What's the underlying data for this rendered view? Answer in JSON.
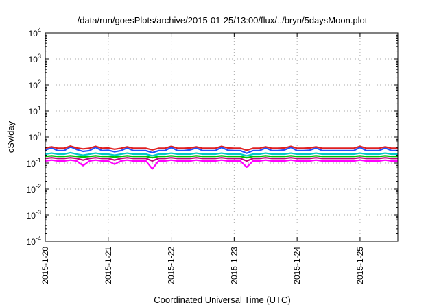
{
  "chart_data": {
    "type": "line",
    "title": "/data/run/goesPlots/archive/2015-01-25/13:00/flux/../bryn/5daysMoon.plot",
    "xlabel": "Coordinated Universal Time (UTC)",
    "ylabel": "cSv/day",
    "yscale": "log",
    "ylim": [
      0.0001,
      10000
    ],
    "xlim": [
      0,
      5.6
    ],
    "grid": true,
    "x_ticks": [
      {
        "value": 0,
        "label": "2015-1-20"
      },
      {
        "value": 1,
        "label": "2015-1-21"
      },
      {
        "value": 2,
        "label": "2015-1-22"
      },
      {
        "value": 3,
        "label": "2015-1-23"
      },
      {
        "value": 4,
        "label": "2015-1-24"
      },
      {
        "value": 5,
        "label": "2015-1-25"
      }
    ],
    "y_ticks": [
      {
        "value": 0.0001,
        "base": "10",
        "exp": "-4"
      },
      {
        "value": 0.001,
        "base": "10",
        "exp": "-3"
      },
      {
        "value": 0.01,
        "base": "10",
        "exp": "-2"
      },
      {
        "value": 0.1,
        "base": "10",
        "exp": "-1"
      },
      {
        "value": 1,
        "base": "10",
        "exp": "0"
      },
      {
        "value": 10,
        "base": "10",
        "exp": "1"
      },
      {
        "value": 100,
        "base": "10",
        "exp": "2"
      },
      {
        "value": 1000,
        "base": "10",
        "exp": "3"
      },
      {
        "value": 10000,
        "base": "10",
        "exp": "4"
      }
    ],
    "series": [
      {
        "color": "#ff00ff",
        "values": [
          0.12,
          0.13,
          0.12,
          0.12,
          0.13,
          0.12,
          0.08,
          0.12,
          0.13,
          0.12,
          0.12,
          0.09,
          0.12,
          0.13,
          0.12,
          0.12,
          0.12,
          0.06,
          0.12,
          0.12,
          0.13,
          0.12,
          0.12,
          0.12,
          0.13,
          0.12,
          0.12,
          0.12,
          0.13,
          0.12,
          0.12,
          0.12,
          0.07,
          0.12,
          0.12,
          0.13,
          0.12,
          0.12,
          0.12,
          0.13,
          0.12,
          0.12,
          0.12,
          0.13,
          0.12,
          0.12,
          0.12,
          0.12,
          0.12,
          0.12,
          0.13,
          0.12,
          0.12,
          0.12,
          0.13,
          0.12,
          0.12
        ]
      },
      {
        "color": "#c00080",
        "values": [
          0.15,
          0.16,
          0.15,
          0.15,
          0.16,
          0.15,
          0.13,
          0.15,
          0.16,
          0.15,
          0.15,
          0.13,
          0.15,
          0.16,
          0.15,
          0.15,
          0.15,
          0.12,
          0.15,
          0.15,
          0.16,
          0.15,
          0.15,
          0.15,
          0.16,
          0.15,
          0.15,
          0.15,
          0.16,
          0.15,
          0.15,
          0.15,
          0.12,
          0.15,
          0.15,
          0.16,
          0.15,
          0.15,
          0.15,
          0.16,
          0.15,
          0.15,
          0.15,
          0.16,
          0.15,
          0.15,
          0.15,
          0.15,
          0.15,
          0.15,
          0.16,
          0.15,
          0.15,
          0.15,
          0.16,
          0.15,
          0.15
        ]
      },
      {
        "color": "#00c000",
        "values": [
          0.18,
          0.19,
          0.18,
          0.18,
          0.19,
          0.18,
          0.17,
          0.18,
          0.19,
          0.18,
          0.18,
          0.17,
          0.18,
          0.19,
          0.18,
          0.18,
          0.18,
          0.16,
          0.18,
          0.18,
          0.19,
          0.18,
          0.18,
          0.18,
          0.19,
          0.18,
          0.18,
          0.18,
          0.19,
          0.18,
          0.18,
          0.18,
          0.16,
          0.18,
          0.18,
          0.19,
          0.18,
          0.18,
          0.18,
          0.19,
          0.18,
          0.18,
          0.18,
          0.19,
          0.18,
          0.18,
          0.18,
          0.18,
          0.18,
          0.18,
          0.19,
          0.18,
          0.18,
          0.18,
          0.19,
          0.18,
          0.18
        ]
      },
      {
        "color": "#00c8c8",
        "values": [
          0.22,
          0.24,
          0.22,
          0.22,
          0.25,
          0.22,
          0.2,
          0.22,
          0.24,
          0.22,
          0.22,
          0.2,
          0.22,
          0.24,
          0.22,
          0.22,
          0.22,
          0.19,
          0.22,
          0.22,
          0.24,
          0.22,
          0.22,
          0.22,
          0.24,
          0.22,
          0.22,
          0.22,
          0.24,
          0.22,
          0.22,
          0.22,
          0.19,
          0.22,
          0.22,
          0.24,
          0.22,
          0.22,
          0.22,
          0.24,
          0.22,
          0.22,
          0.22,
          0.24,
          0.22,
          0.22,
          0.22,
          0.22,
          0.22,
          0.22,
          0.24,
          0.22,
          0.22,
          0.22,
          0.24,
          0.22,
          0.22
        ]
      },
      {
        "color": "#2050ff",
        "values": [
          0.32,
          0.38,
          0.3,
          0.3,
          0.42,
          0.33,
          0.28,
          0.3,
          0.4,
          0.3,
          0.31,
          0.27,
          0.3,
          0.38,
          0.3,
          0.3,
          0.3,
          0.25,
          0.3,
          0.3,
          0.4,
          0.3,
          0.3,
          0.32,
          0.38,
          0.3,
          0.3,
          0.3,
          0.4,
          0.31,
          0.3,
          0.3,
          0.24,
          0.3,
          0.3,
          0.38,
          0.3,
          0.3,
          0.32,
          0.4,
          0.3,
          0.3,
          0.31,
          0.38,
          0.3,
          0.3,
          0.3,
          0.3,
          0.3,
          0.3,
          0.4,
          0.3,
          0.3,
          0.3,
          0.38,
          0.3,
          0.3
        ]
      },
      {
        "color": "#e02020",
        "values": [
          0.38,
          0.42,
          0.37,
          0.37,
          0.45,
          0.38,
          0.35,
          0.37,
          0.44,
          0.37,
          0.38,
          0.34,
          0.37,
          0.42,
          0.37,
          0.37,
          0.37,
          0.32,
          0.37,
          0.37,
          0.44,
          0.37,
          0.37,
          0.38,
          0.42,
          0.37,
          0.37,
          0.37,
          0.44,
          0.38,
          0.37,
          0.37,
          0.31,
          0.37,
          0.37,
          0.42,
          0.37,
          0.37,
          0.38,
          0.44,
          0.37,
          0.37,
          0.38,
          0.42,
          0.37,
          0.37,
          0.37,
          0.37,
          0.37,
          0.37,
          0.44,
          0.37,
          0.37,
          0.37,
          0.42,
          0.37,
          0.37
        ]
      }
    ]
  }
}
